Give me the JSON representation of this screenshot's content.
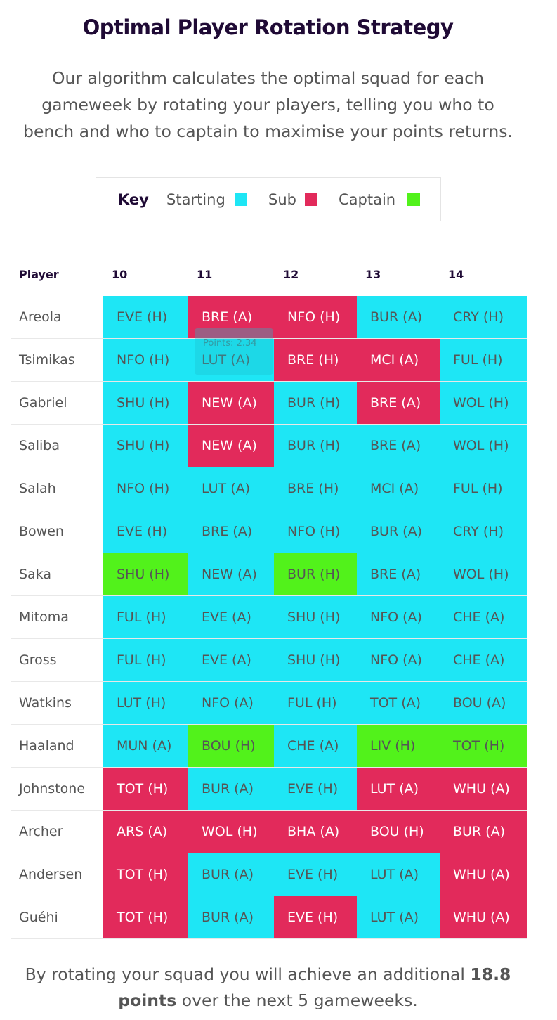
{
  "title": "Optimal Player Rotation Strategy",
  "intro": "Our algorithm calculates the optimal squad for each gameweek by rotating your players, telling you who to bench and who to captain to maximise your points returns.",
  "key": {
    "label": "Key",
    "starting": "Starting",
    "sub": "Sub",
    "captain": "Captain"
  },
  "colors": {
    "starting": "#1ee6f5",
    "sub": "#e22a5b",
    "captain": "#52f21b"
  },
  "table": {
    "player_header": "Player",
    "gameweeks": [
      "10",
      "11",
      "12",
      "13",
      "14"
    ],
    "rows": [
      {
        "player": "Areola",
        "cells": [
          {
            "text": "EVE (H)",
            "status": "start"
          },
          {
            "text": "BRE (A)",
            "status": "sub"
          },
          {
            "text": "NFO (H)",
            "status": "sub"
          },
          {
            "text": "BUR (A)",
            "status": "start"
          },
          {
            "text": "CRY (H)",
            "status": "start"
          }
        ]
      },
      {
        "player": "Tsimikas",
        "cells": [
          {
            "text": "NFO (H)",
            "status": "start"
          },
          {
            "text": "LUT (A)",
            "status": "start"
          },
          {
            "text": "BRE (H)",
            "status": "sub"
          },
          {
            "text": "MCI (A)",
            "status": "sub"
          },
          {
            "text": "FUL (H)",
            "status": "start"
          }
        ]
      },
      {
        "player": "Gabriel",
        "cells": [
          {
            "text": "SHU (H)",
            "status": "start"
          },
          {
            "text": "NEW (A)",
            "status": "sub"
          },
          {
            "text": "BUR (H)",
            "status": "start"
          },
          {
            "text": "BRE (A)",
            "status": "sub"
          },
          {
            "text": "WOL (H)",
            "status": "start"
          }
        ]
      },
      {
        "player": "Saliba",
        "cells": [
          {
            "text": "SHU (H)",
            "status": "start"
          },
          {
            "text": "NEW (A)",
            "status": "sub"
          },
          {
            "text": "BUR (H)",
            "status": "start"
          },
          {
            "text": "BRE (A)",
            "status": "start"
          },
          {
            "text": "WOL (H)",
            "status": "start"
          }
        ]
      },
      {
        "player": "Salah",
        "cells": [
          {
            "text": "NFO (H)",
            "status": "start"
          },
          {
            "text": "LUT (A)",
            "status": "start"
          },
          {
            "text": "BRE (H)",
            "status": "start"
          },
          {
            "text": "MCI (A)",
            "status": "start"
          },
          {
            "text": "FUL (H)",
            "status": "start"
          }
        ]
      },
      {
        "player": "Bowen",
        "cells": [
          {
            "text": "EVE (H)",
            "status": "start"
          },
          {
            "text": "BRE (A)",
            "status": "start"
          },
          {
            "text": "NFO (H)",
            "status": "start"
          },
          {
            "text": "BUR (A)",
            "status": "start"
          },
          {
            "text": "CRY (H)",
            "status": "start"
          }
        ]
      },
      {
        "player": "Saka",
        "cells": [
          {
            "text": "SHU (H)",
            "status": "cap"
          },
          {
            "text": "NEW (A)",
            "status": "start"
          },
          {
            "text": "BUR (H)",
            "status": "cap"
          },
          {
            "text": "BRE (A)",
            "status": "start"
          },
          {
            "text": "WOL (H)",
            "status": "start"
          }
        ]
      },
      {
        "player": "Mitoma",
        "cells": [
          {
            "text": "FUL (H)",
            "status": "start"
          },
          {
            "text": "EVE (A)",
            "status": "start"
          },
          {
            "text": "SHU (H)",
            "status": "start"
          },
          {
            "text": "NFO (A)",
            "status": "start"
          },
          {
            "text": "CHE (A)",
            "status": "start"
          }
        ]
      },
      {
        "player": "Gross",
        "cells": [
          {
            "text": "FUL (H)",
            "status": "start"
          },
          {
            "text": "EVE (A)",
            "status": "start"
          },
          {
            "text": "SHU (H)",
            "status": "start"
          },
          {
            "text": "NFO (A)",
            "status": "start"
          },
          {
            "text": "CHE (A)",
            "status": "start"
          }
        ]
      },
      {
        "player": "Watkins",
        "cells": [
          {
            "text": "LUT (H)",
            "status": "start"
          },
          {
            "text": "NFO (A)",
            "status": "start"
          },
          {
            "text": "FUL (H)",
            "status": "start"
          },
          {
            "text": "TOT (A)",
            "status": "start"
          },
          {
            "text": "BOU (A)",
            "status": "start"
          }
        ]
      },
      {
        "player": "Haaland",
        "cells": [
          {
            "text": "MUN (A)",
            "status": "start"
          },
          {
            "text": "BOU (H)",
            "status": "cap"
          },
          {
            "text": "CHE (A)",
            "status": "start"
          },
          {
            "text": "LIV (H)",
            "status": "cap"
          },
          {
            "text": "TOT (H)",
            "status": "cap"
          }
        ]
      },
      {
        "player": "Johnstone",
        "cells": [
          {
            "text": "TOT (H)",
            "status": "sub"
          },
          {
            "text": "BUR (A)",
            "status": "start"
          },
          {
            "text": "EVE (H)",
            "status": "start"
          },
          {
            "text": "LUT (A)",
            "status": "sub"
          },
          {
            "text": "WHU (A)",
            "status": "sub"
          }
        ]
      },
      {
        "player": "Archer",
        "cells": [
          {
            "text": "ARS (A)",
            "status": "sub"
          },
          {
            "text": "WOL (H)",
            "status": "sub"
          },
          {
            "text": "BHA (A)",
            "status": "sub"
          },
          {
            "text": "BOU (H)",
            "status": "sub"
          },
          {
            "text": "BUR (A)",
            "status": "sub"
          }
        ]
      },
      {
        "player": "Andersen",
        "cells": [
          {
            "text": "TOT (H)",
            "status": "sub"
          },
          {
            "text": "BUR (A)",
            "status": "start"
          },
          {
            "text": "EVE (H)",
            "status": "start"
          },
          {
            "text": "LUT (A)",
            "status": "start"
          },
          {
            "text": "WHU (A)",
            "status": "sub"
          }
        ]
      },
      {
        "player": "Guéhi",
        "cells": [
          {
            "text": "TOT (H)",
            "status": "sub"
          },
          {
            "text": "BUR (A)",
            "status": "start"
          },
          {
            "text": "EVE (H)",
            "status": "sub"
          },
          {
            "text": "LUT (A)",
            "status": "start"
          },
          {
            "text": "WHU (A)",
            "status": "sub"
          }
        ]
      }
    ]
  },
  "tooltip": "Points: 2.34",
  "footer": {
    "prefix": "By rotating your squad you will achieve an additional",
    "bold": "18.8 points",
    "suffix": "over the next 5 gameweeks."
  }
}
